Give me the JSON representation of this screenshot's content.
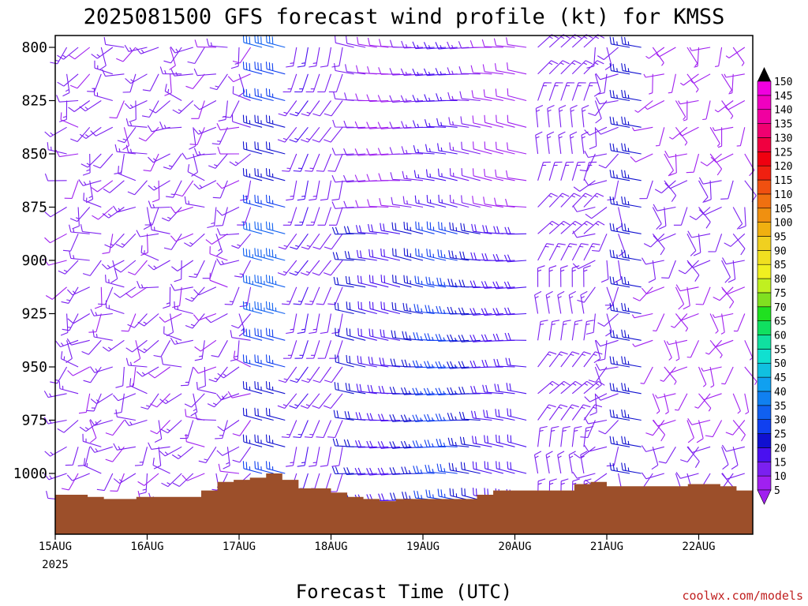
{
  "chart_data": {
    "type": "wind-barb time-height section",
    "title": "2025081500 GFS forecast wind profile (kt) for KMSS",
    "xlabel": "Forecast Time (UTC)",
    "credit": "coolwx.com/models",
    "y_axis": {
      "reversed": true,
      "tick_labels": [
        "800",
        "825",
        "850",
        "875",
        "900",
        "925",
        "950",
        "975",
        "1000"
      ],
      "ticks": [
        800,
        825,
        850,
        875,
        900,
        925,
        950,
        975,
        1000
      ],
      "range": [
        795,
        1020
      ]
    },
    "x_axis": {
      "tick_labels": [
        "15AUG",
        "16AUG",
        "17AUG",
        "18AUG",
        "19AUG",
        "20AUG",
        "21AUG",
        "22AUG"
      ],
      "year_label": "2025",
      "range_hours": [
        0,
        180
      ]
    },
    "pressure_levels": [
      800,
      812.5,
      825,
      837.5,
      850,
      862.5,
      875,
      887.5,
      900,
      912.5,
      925,
      937.5,
      950,
      962.5,
      975,
      987.5,
      1000,
      1012.5
    ],
    "colorbar": {
      "levels": [
        5,
        10,
        15,
        20,
        25,
        30,
        35,
        40,
        45,
        50,
        55,
        60,
        65,
        70,
        75,
        80,
        85,
        90,
        95,
        100,
        105,
        110,
        115,
        120,
        125,
        130,
        135,
        140,
        145,
        150
      ],
      "colors": [
        "#a020f0",
        "#7b20f0",
        "#4a10f0",
        "#1010d0",
        "#1040f0",
        "#1060f0",
        "#1080f0",
        "#10a0f0",
        "#10c0e0",
        "#10e0d0",
        "#10e0a0",
        "#10e060",
        "#20e020",
        "#80e020",
        "#c0f020",
        "#f0f020",
        "#f0e020",
        "#f0d020",
        "#f0b010",
        "#f09010",
        "#f07010",
        "#f05010",
        "#f02010",
        "#f00010",
        "#f00040",
        "#f00070",
        "#f000a0",
        "#f000c0",
        "#f000e0",
        "#f020f0"
      ]
    },
    "surface_pressure_profile": [
      1010,
      1010,
      1011,
      1012,
      1012,
      1011,
      1011,
      1011,
      1011,
      1008,
      1004,
      1003,
      1002,
      1000,
      1003,
      1007,
      1007,
      1009,
      1011,
      1012,
      1013,
      1012,
      1012,
      1012,
      1012,
      1012,
      1010,
      1008,
      1008,
      1008,
      1008,
      1008,
      1005,
      1004,
      1006,
      1006,
      1006,
      1006,
      1006,
      1005,
      1005,
      1006,
      1008
    ]
  }
}
